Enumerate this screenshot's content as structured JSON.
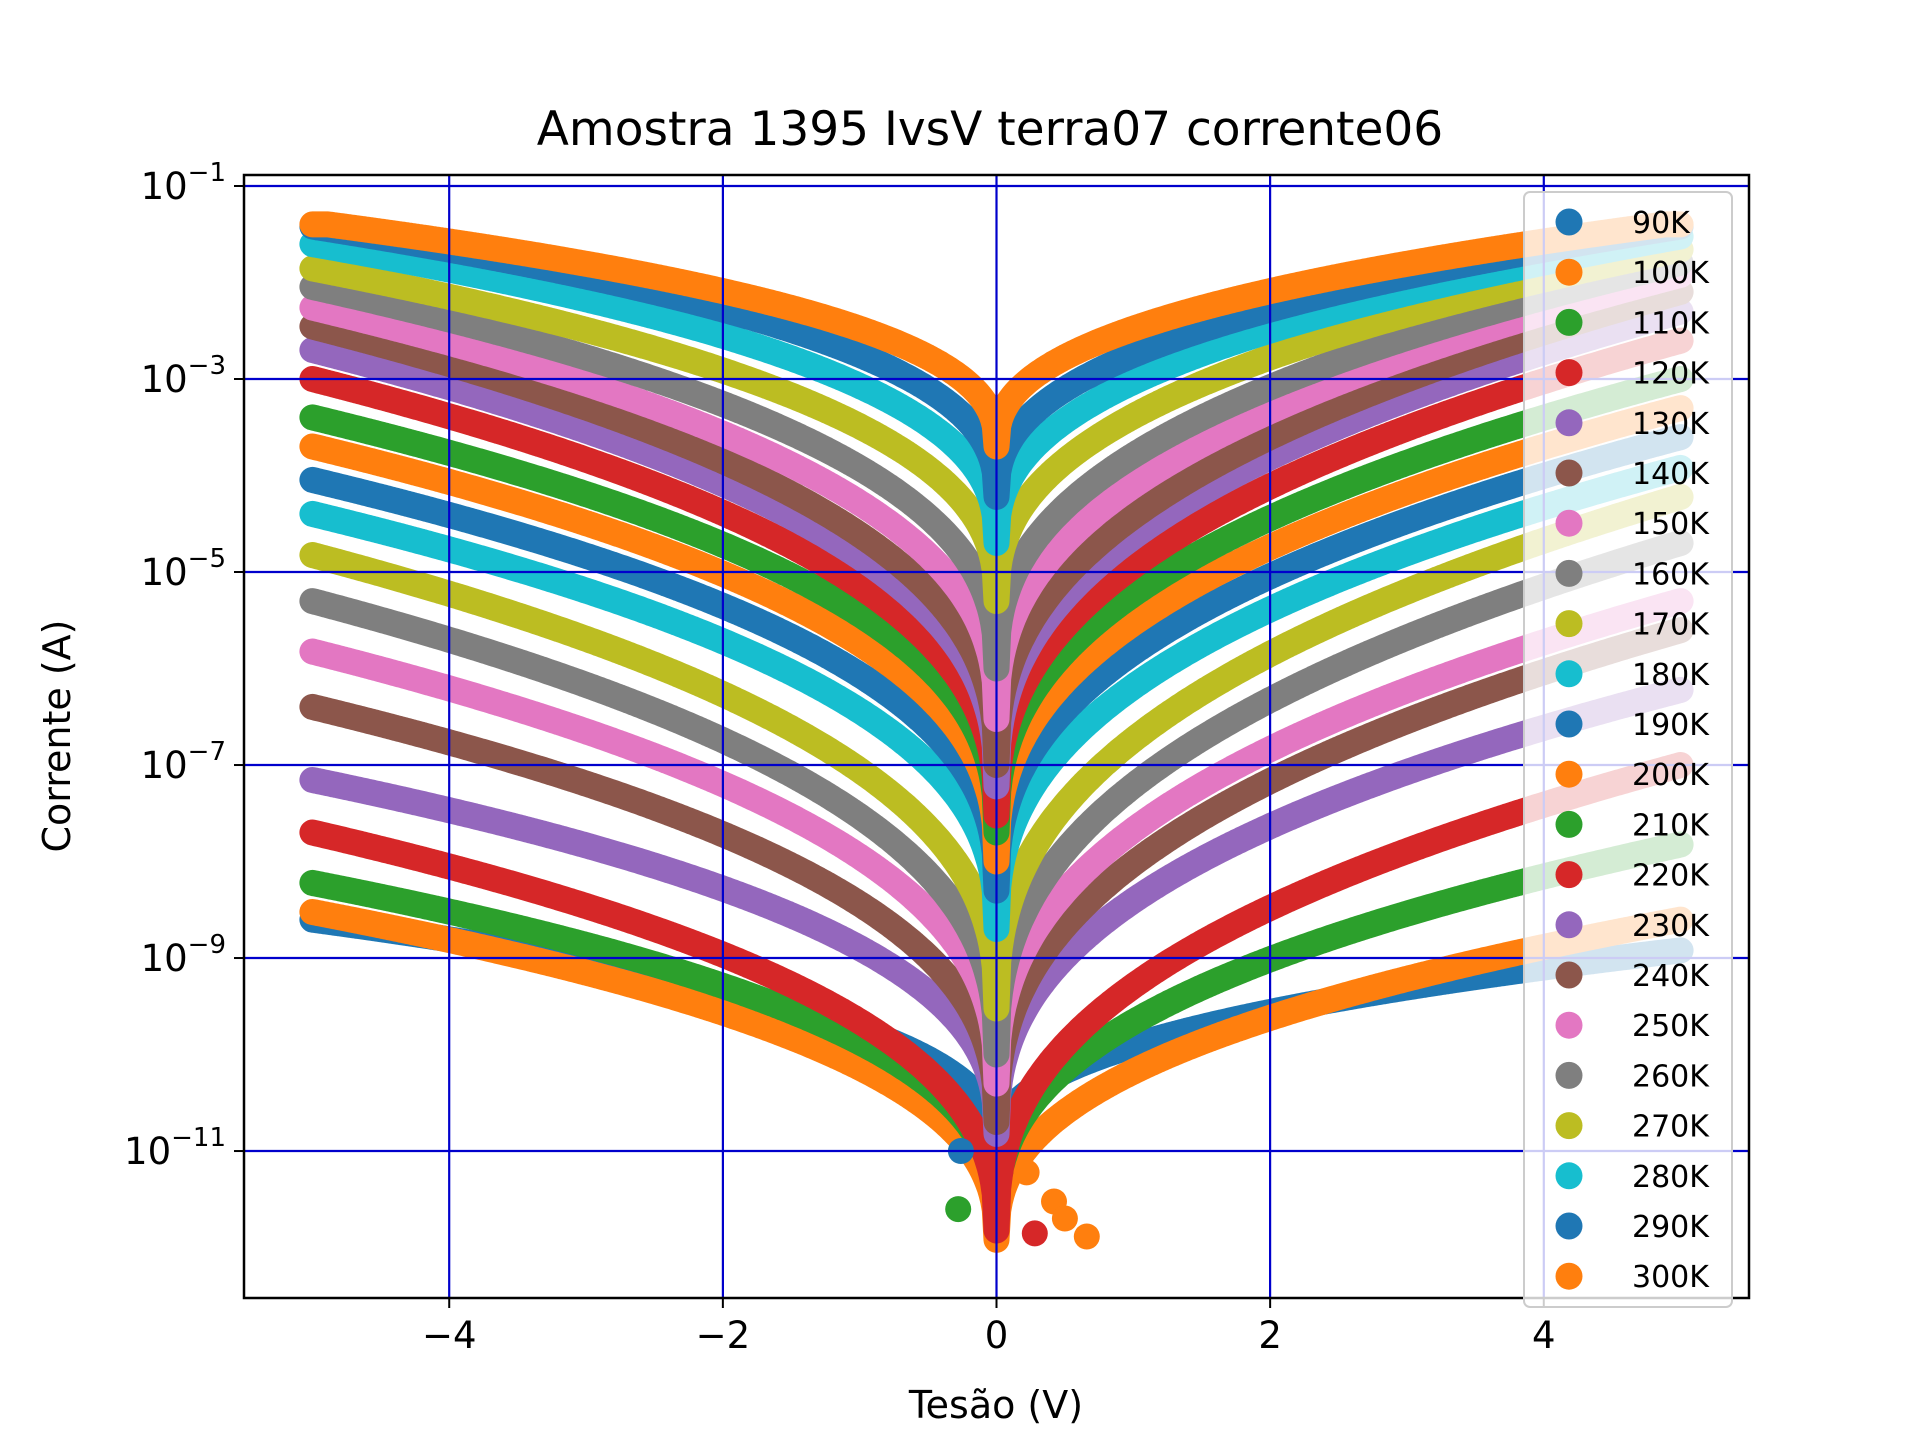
{
  "chart_data": {
    "type": "scatter",
    "title": "Amostra 1395 IvsV terra07 corrente06",
    "xlabel": "Tesão (V)",
    "ylabel": "Corrente (A)",
    "xlim": [
      -5.5,
      5.5
    ],
    "ylim": [
      3e-13,
      0.13
    ],
    "yscale": "log",
    "grid": true,
    "grid_color": "#0000cc",
    "legend_position": "upper right",
    "x_ticks": [
      {
        "value": -4,
        "label": "−4"
      },
      {
        "value": -2,
        "label": "−2"
      },
      {
        "value": 0,
        "label": "0"
      },
      {
        "value": 2,
        "label": "2"
      },
      {
        "value": 4,
        "label": "4"
      }
    ],
    "y_ticks": [
      {
        "value": 0.1,
        "base": "10",
        "exp": "−1"
      },
      {
        "value": 0.001,
        "base": "10",
        "exp": "−3"
      },
      {
        "value": 1e-05,
        "base": "10",
        "exp": "−5"
      },
      {
        "value": 1e-07,
        "base": "10",
        "exp": "−7"
      },
      {
        "value": 1e-09,
        "base": "10",
        "exp": "−9"
      },
      {
        "value": 1e-11,
        "base": "10",
        "exp": "−11"
      }
    ],
    "x_range": [
      -5,
      5
    ],
    "saturation_current": 0.04,
    "series": [
      {
        "name": "90K",
        "color": "#1f77b4",
        "neg_end": 2.5e-09,
        "pos_end": 1.2e-09,
        "min_current": 1e-11
      },
      {
        "name": "100K",
        "color": "#ff7f0e",
        "neg_end": 3e-09,
        "pos_end": 2.5e-09,
        "min_current": 1.2e-12
      },
      {
        "name": "110K",
        "color": "#2ca02c",
        "neg_end": 6e-09,
        "pos_end": 1.5e-08,
        "min_current": 2e-12
      },
      {
        "name": "120K",
        "color": "#d62728",
        "neg_end": 2e-08,
        "pos_end": 1e-07,
        "min_current": 1.5e-12
      },
      {
        "name": "130K",
        "color": "#9467bd",
        "neg_end": 7e-08,
        "pos_end": 6e-07,
        "min_current": 1.5e-11
      },
      {
        "name": "140K",
        "color": "#8c564b",
        "neg_end": 4e-07,
        "pos_end": 2.5e-06,
        "min_current": 2e-11
      },
      {
        "name": "150K",
        "color": "#e377c2",
        "neg_end": 1.5e-06,
        "pos_end": 5e-06,
        "min_current": 5e-11
      },
      {
        "name": "160K",
        "color": "#7f7f7f",
        "neg_end": 5e-06,
        "pos_end": 2e-05,
        "min_current": 1e-10
      },
      {
        "name": "170K",
        "color": "#bcbd22",
        "neg_end": 1.5e-05,
        "pos_end": 6e-05,
        "min_current": 3e-10
      },
      {
        "name": "180K",
        "color": "#17becf",
        "neg_end": 4e-05,
        "pos_end": 0.00012,
        "min_current": 2e-09
      },
      {
        "name": "190K",
        "color": "#1f77b4",
        "neg_end": 9e-05,
        "pos_end": 0.00025,
        "min_current": 5e-09
      },
      {
        "name": "200K",
        "color": "#ff7f0e",
        "neg_end": 0.0002,
        "pos_end": 0.0005,
        "min_current": 1e-08
      },
      {
        "name": "210K",
        "color": "#2ca02c",
        "neg_end": 0.0004,
        "pos_end": 0.001,
        "min_current": 2e-08
      },
      {
        "name": "220K",
        "color": "#d62728",
        "neg_end": 0.001,
        "pos_end": 0.0025,
        "min_current": 3e-08
      },
      {
        "name": "230K",
        "color": "#9467bd",
        "neg_end": 0.002,
        "pos_end": 0.005,
        "min_current": 6e-08
      },
      {
        "name": "240K",
        "color": "#8c564b",
        "neg_end": 0.0035,
        "pos_end": 0.008,
        "min_current": 1e-07
      },
      {
        "name": "250K",
        "color": "#e377c2",
        "neg_end": 0.0055,
        "pos_end": 0.012,
        "min_current": 3e-07
      },
      {
        "name": "260K",
        "color": "#7f7f7f",
        "neg_end": 0.009,
        "pos_end": 0.016,
        "min_current": 1e-06
      },
      {
        "name": "270K",
        "color": "#bcbd22",
        "neg_end": 0.014,
        "pos_end": 0.022,
        "min_current": 5e-06
      },
      {
        "name": "280K",
        "color": "#17becf",
        "neg_end": 0.025,
        "pos_end": 0.03,
        "min_current": 2e-05
      },
      {
        "name": "290K",
        "color": "#1f77b4",
        "neg_end": 0.038,
        "pos_end": 0.038,
        "min_current": 6e-05
      },
      {
        "name": "300K",
        "color": "#ff7f0e",
        "neg_end": 0.042,
        "pos_end": 0.042,
        "min_current": 0.0002
      }
    ],
    "outlier_points": [
      {
        "series": "110K",
        "x": -0.28,
        "y": 2.5e-12
      },
      {
        "series": "120K",
        "x": 0.28,
        "y": 1.4e-12
      },
      {
        "series": "100K",
        "x": 0.42,
        "y": 3e-12
      },
      {
        "series": "100K",
        "x": 0.5,
        "y": 2e-12
      },
      {
        "series": "100K",
        "x": 0.66,
        "y": 1.3e-12
      },
      {
        "series": "100K",
        "x": 0.22,
        "y": 6e-12
      },
      {
        "series": "90K",
        "x": -0.26,
        "y": 1e-11
      }
    ]
  }
}
